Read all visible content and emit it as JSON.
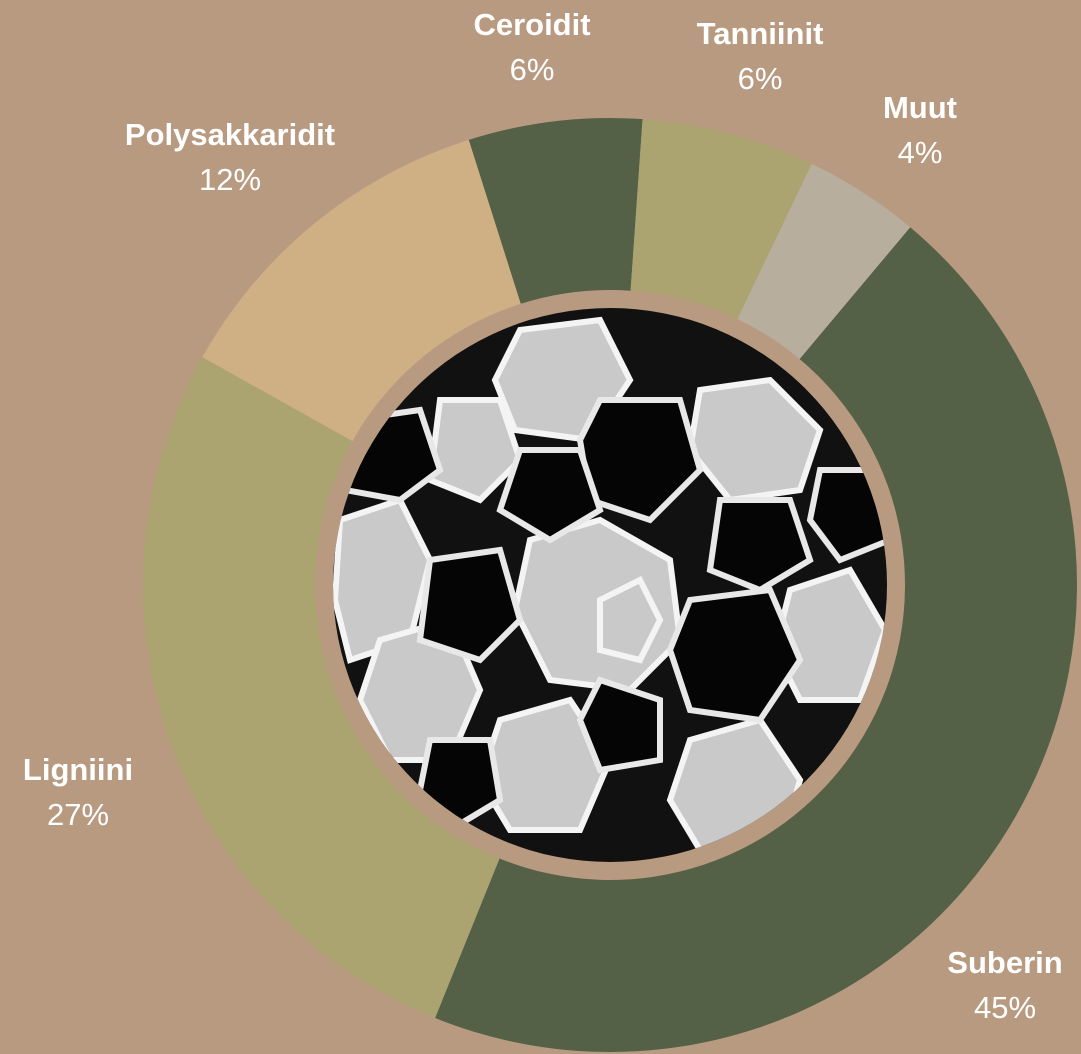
{
  "chart_data": {
    "type": "donut",
    "categories": [
      "Suberin",
      "Ligniini",
      "Polysakkaridit",
      "Ceroidit",
      "Tanniinit",
      "Muut"
    ],
    "values": [
      45,
      27,
      12,
      6,
      6,
      4
    ],
    "value_labels": [
      "45%",
      "27%",
      "12%",
      "6%",
      "6%",
      "4%"
    ],
    "colors": [
      "#546147",
      "#aca470",
      "#cfb084",
      "#546147",
      "#aca470",
      "#b8ae9e"
    ]
  }
}
